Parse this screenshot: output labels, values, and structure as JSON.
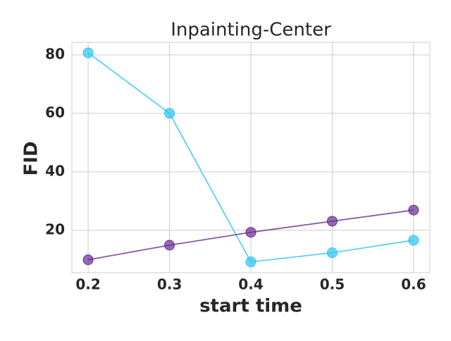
{
  "chart_data": {
    "type": "line",
    "title": "Inpainting-Center",
    "x_label": "start time",
    "y_label": "FID",
    "x": [
      0.2,
      0.3,
      0.4,
      0.5,
      0.6
    ],
    "series": [
      {
        "color": "#2ec4f3",
        "values": [
          80.7,
          60,
          9.2,
          12.3,
          16.6
        ]
      },
      {
        "color": "#6a2c91",
        "values": [
          9.9,
          14.9,
          19.3,
          23.1,
          26.9
        ]
      }
    ],
    "xlim": [
      0.18,
      0.62
    ],
    "xticks": [
      0.2,
      0.3,
      0.4,
      0.5,
      0.6
    ],
    "ylim": [
      5.5,
      84.3
    ],
    "yticks": [
      20,
      40,
      60,
      80
    ],
    "grid": true
  }
}
